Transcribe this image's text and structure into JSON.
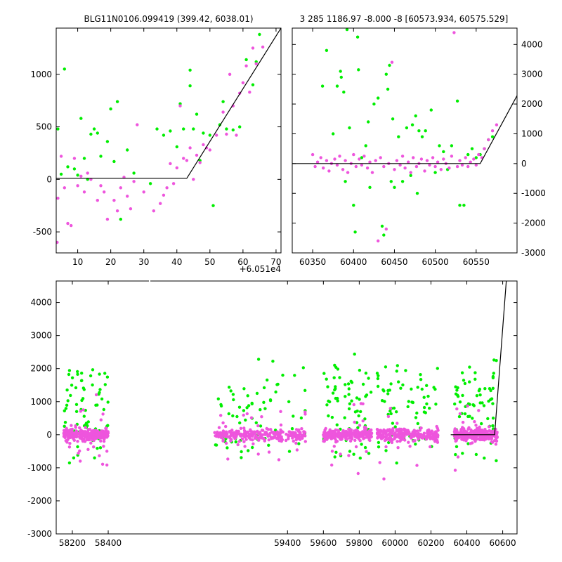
{
  "chart_data": [
    {
      "type": "scatter",
      "title": "BLG11N0106.099419 (399.42, 6038.01)",
      "offset_label": "+6.051e4",
      "xlim": [
        3.5,
        71.5
      ],
      "ylim": [
        -700,
        1440
      ],
      "x_ticks": [
        10,
        20,
        30,
        40,
        50,
        60,
        70
      ],
      "y_ticks": [
        -500,
        0,
        500,
        1000
      ],
      "model_line": {
        "x": [
          3.5,
          43,
          71.5
        ],
        "y": [
          10,
          10,
          1440
        ]
      },
      "series": [
        {
          "color": "#00ee00",
          "points": [
            [
              4,
              480
            ],
            [
              5,
              50
            ],
            [
              6,
              1050
            ],
            [
              7,
              120
            ],
            [
              9,
              100
            ],
            [
              10,
              40
            ],
            [
              11,
              580
            ],
            [
              12,
              200
            ],
            [
              13,
              0
            ],
            [
              14,
              430
            ],
            [
              15,
              480
            ],
            [
              16,
              440
            ],
            [
              17,
              220
            ],
            [
              19,
              360
            ],
            [
              20,
              670
            ],
            [
              21,
              170
            ],
            [
              22,
              740
            ],
            [
              23,
              -380
            ],
            [
              25,
              280
            ],
            [
              27,
              60
            ],
            [
              32,
              -40
            ],
            [
              34,
              480
            ],
            [
              36,
              420
            ],
            [
              38,
              460
            ],
            [
              40,
              310
            ],
            [
              41,
              720
            ],
            [
              42,
              480
            ],
            [
              44,
              1040
            ],
            [
              44,
              890
            ],
            [
              45,
              480
            ],
            [
              46,
              620
            ],
            [
              47,
              180
            ],
            [
              48,
              440
            ],
            [
              50,
              420
            ],
            [
              51,
              -250
            ],
            [
              53,
              520
            ],
            [
              54,
              740
            ],
            [
              55,
              480
            ],
            [
              57,
              470
            ],
            [
              59,
              500
            ],
            [
              61,
              1140
            ],
            [
              63,
              900
            ],
            [
              64,
              1120
            ],
            [
              65,
              1380
            ]
          ]
        },
        {
          "color": "#ee55dd",
          "points": [
            [
              3.8,
              -600
            ],
            [
              4,
              -180
            ],
            [
              5,
              220
            ],
            [
              6,
              -80
            ],
            [
              7,
              -420
            ],
            [
              8,
              -440
            ],
            [
              9,
              200
            ],
            [
              10,
              -60
            ],
            [
              11,
              30
            ],
            [
              12,
              -120
            ],
            [
              13,
              60
            ],
            [
              14,
              0
            ],
            [
              16,
              -200
            ],
            [
              17,
              -60
            ],
            [
              18,
              -120
            ],
            [
              19,
              -380
            ],
            [
              21,
              -200
            ],
            [
              22,
              -300
            ],
            [
              23,
              -80
            ],
            [
              24,
              20
            ],
            [
              25,
              -160
            ],
            [
              26,
              -280
            ],
            [
              27,
              -20
            ],
            [
              28,
              520
            ],
            [
              30,
              -120
            ],
            [
              33,
              -300
            ],
            [
              35,
              -230
            ],
            [
              36,
              -150
            ],
            [
              37,
              -80
            ],
            [
              38,
              150
            ],
            [
              39,
              -40
            ],
            [
              40,
              110
            ],
            [
              41,
              700
            ],
            [
              42,
              200
            ],
            [
              43,
              180
            ],
            [
              44,
              300
            ],
            [
              45,
              0
            ],
            [
              46,
              230
            ],
            [
              47,
              160
            ],
            [
              48,
              330
            ],
            [
              49,
              300
            ],
            [
              50,
              280
            ],
            [
              52,
              420
            ],
            [
              54,
              640
            ],
            [
              55,
              430
            ],
            [
              56,
              1000
            ],
            [
              57,
              700
            ],
            [
              58,
              420
            ],
            [
              59,
              820
            ],
            [
              60,
              920
            ],
            [
              61,
              1080
            ],
            [
              62,
              830
            ],
            [
              63,
              1250
            ],
            [
              64,
              1100
            ],
            [
              66,
              1260
            ]
          ]
        }
      ]
    },
    {
      "type": "scatter",
      "title": "3 285 1186.97 -8.000 -8 [60573.934, 60575.529]",
      "xlim": [
        60325,
        60600
      ],
      "ylim": [
        -3000,
        4550
      ],
      "x_ticks": [
        60350,
        60400,
        60450,
        60500,
        60550
      ],
      "y_ticks": [
        -3000,
        -2000,
        -1000,
        0,
        1000,
        2000,
        3000,
        4000
      ],
      "model_line": {
        "x": [
          60325,
          60555,
          60600
        ],
        "y": [
          0,
          0,
          2280
        ]
      },
      "series": [
        {
          "color": "#00ee00",
          "points": [
            [
              60362,
              2600
            ],
            [
              60367,
              3800
            ],
            [
              60375,
              1000
            ],
            [
              60380,
              2600
            ],
            [
              60384,
              3100
            ],
            [
              60385,
              2900
            ],
            [
              60388,
              2400
            ],
            [
              60390,
              -600
            ],
            [
              60392,
              4500
            ],
            [
              60395,
              1200
            ],
            [
              60400,
              -1400
            ],
            [
              60402,
              -2300
            ],
            [
              60405,
              4250
            ],
            [
              60406,
              3150
            ],
            [
              60410,
              200
            ],
            [
              60415,
              600
            ],
            [
              60418,
              1400
            ],
            [
              60420,
              -800
            ],
            [
              60425,
              2000
            ],
            [
              60430,
              2200
            ],
            [
              60435,
              -2100
            ],
            [
              60437,
              -2400
            ],
            [
              60440,
              3000
            ],
            [
              60442,
              2500
            ],
            [
              60444,
              3300
            ],
            [
              60446,
              -600
            ],
            [
              60448,
              1500
            ],
            [
              60450,
              -800
            ],
            [
              60455,
              900
            ],
            [
              60460,
              -600
            ],
            [
              60465,
              1200
            ],
            [
              60470,
              -400
            ],
            [
              60472,
              1300
            ],
            [
              60476,
              1600
            ],
            [
              60478,
              -1000
            ],
            [
              60480,
              1100
            ],
            [
              60484,
              900
            ],
            [
              60488,
              1100
            ],
            [
              60495,
              1800
            ],
            [
              60500,
              -300
            ],
            [
              60505,
              600
            ],
            [
              60510,
              400
            ],
            [
              60515,
              -200
            ],
            [
              60520,
              600
            ],
            [
              60527,
              2100
            ],
            [
              60530,
              -1400
            ],
            [
              60535,
              -1400
            ],
            [
              60540,
              300
            ],
            [
              60545,
              500
            ],
            [
              60550,
              200
            ],
            [
              60555,
              300
            ],
            [
              60560,
              500
            ],
            [
              60565,
              800
            ],
            [
              60570,
              900
            ]
          ]
        },
        {
          "color": "#ee55dd",
          "points": [
            [
              60350,
              300
            ],
            [
              60353,
              -100
            ],
            [
              60356,
              50
            ],
            [
              60360,
              200
            ],
            [
              60363,
              -150
            ],
            [
              60367,
              100
            ],
            [
              60370,
              -250
            ],
            [
              60373,
              0
            ],
            [
              60377,
              150
            ],
            [
              60380,
              -50
            ],
            [
              60383,
              250
            ],
            [
              60387,
              -200
            ],
            [
              60390,
              100
            ],
            [
              60393,
              -300
            ],
            [
              60397,
              0
            ],
            [
              60400,
              300
            ],
            [
              60403,
              -100
            ],
            [
              60407,
              150
            ],
            [
              60410,
              -50
            ],
            [
              60413,
              250
            ],
            [
              60417,
              -150
            ],
            [
              60420,
              50
            ],
            [
              60423,
              -300
            ],
            [
              60427,
              100
            ],
            [
              60430,
              -2600
            ],
            [
              60433,
              200
            ],
            [
              60437,
              -100
            ],
            [
              60440,
              -2200
            ],
            [
              60443,
              0
            ],
            [
              60447,
              3400
            ],
            [
              60450,
              -200
            ],
            [
              60453,
              100
            ],
            [
              60457,
              -50
            ],
            [
              60460,
              250
            ],
            [
              60463,
              -150
            ],
            [
              60467,
              50
            ],
            [
              60470,
              -300
            ],
            [
              60473,
              200
            ],
            [
              60477,
              -100
            ],
            [
              60480,
              0
            ],
            [
              60483,
              150
            ],
            [
              60487,
              -250
            ],
            [
              60490,
              100
            ],
            [
              60493,
              -50
            ],
            [
              60497,
              200
            ],
            [
              60500,
              -100
            ],
            [
              60503,
              50
            ],
            [
              60507,
              -200
            ],
            [
              60510,
              150
            ],
            [
              60513,
              0
            ],
            [
              60517,
              -150
            ],
            [
              60520,
              250
            ],
            [
              60523,
              4400
            ],
            [
              60527,
              -100
            ],
            [
              60530,
              100
            ],
            [
              60533,
              -50
            ],
            [
              60537,
              200
            ],
            [
              60540,
              -100
            ],
            [
              60543,
              50
            ],
            [
              60547,
              150
            ],
            [
              60550,
              -50
            ],
            [
              60553,
              300
            ],
            [
              60557,
              200
            ],
            [
              60560,
              500
            ],
            [
              60565,
              800
            ],
            [
              60570,
              1100
            ],
            [
              60575,
              1300
            ]
          ]
        }
      ]
    },
    {
      "type": "scatter",
      "xlim": [
        58110,
        60680
      ],
      "ylim": [
        -3000,
        4650
      ],
      "x_ticks": [
        58200,
        58400,
        59400,
        59600,
        59800,
        60000,
        60200,
        60400,
        60600
      ],
      "y_ticks": [
        -3000,
        -2000,
        -1000,
        0,
        1000,
        2000,
        3000,
        4000
      ],
      "model_line": {
        "x": [
          60310,
          60555,
          60620
        ],
        "y": [
          0,
          0,
          4650
        ]
      },
      "season_ranges": [
        [
          58150,
          58400
        ],
        [
          58990,
          59500
        ],
        [
          59600,
          59870
        ],
        [
          59900,
          60240
        ],
        [
          60330,
          60570
        ]
      ],
      "series": [
        {
          "color": "#00ee00",
          "spread": [
            -1600,
            4550
          ]
        },
        {
          "color": "#ee55dd",
          "spread": [
            -800,
            900
          ]
        }
      ]
    }
  ]
}
